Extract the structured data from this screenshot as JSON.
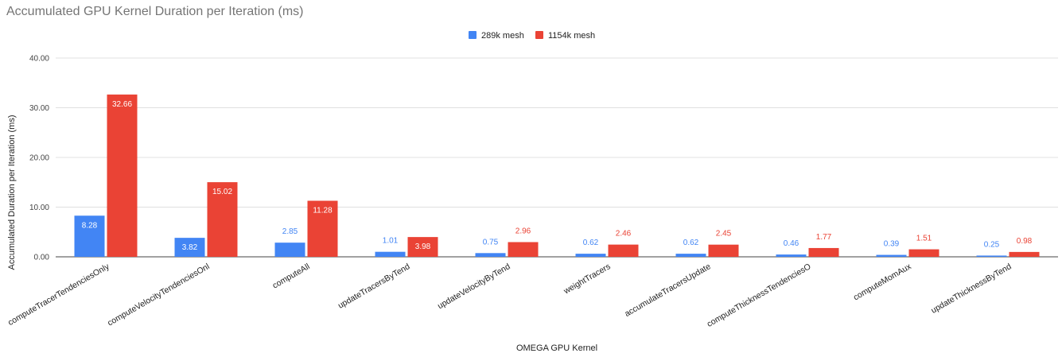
{
  "chart_data": {
    "type": "bar",
    "title": "Accumulated GPU Kernel Duration per Iteration (ms)",
    "xlabel": "OMEGA GPU Kernel",
    "ylabel": "Accumulated Duration per Iteration (ms)",
    "ylim": [
      0,
      40
    ],
    "yticks": [
      "0.00",
      "10.00",
      "20.00",
      "30.00",
      "40.00"
    ],
    "grid": true,
    "legend": "top-center",
    "categories": [
      "computeTracerTendenciesOnly",
      "computeVelocityTendenciesOnl",
      "computeAll",
      "updateTracersByTend",
      "updateVelocityByTend",
      "weightTracers",
      "accumulateTracersUpdate",
      "computeThicknessTendenciesO",
      "computeMomAux",
      "updateThicknessByTend"
    ],
    "series": [
      {
        "name": "289k mesh",
        "color": "#4285f4",
        "values": [
          8.28,
          3.82,
          2.85,
          1.01,
          0.75,
          0.62,
          0.62,
          0.46,
          0.39,
          0.25
        ],
        "labels": [
          "8.28",
          "3.82",
          "2.85",
          "1.01",
          "0.75",
          "0.62",
          "0.62",
          "0.46",
          "0.39",
          "0.25"
        ]
      },
      {
        "name": "1154k mesh",
        "color": "#ea4335",
        "values": [
          32.66,
          15.02,
          11.28,
          3.98,
          2.96,
          2.46,
          2.45,
          1.77,
          1.51,
          0.98
        ],
        "labels": [
          "32.66",
          "15.02",
          "11.28",
          "3.98",
          "2.96",
          "2.46",
          "2.45",
          "1.77",
          "1.51",
          "0.98"
        ]
      }
    ]
  }
}
